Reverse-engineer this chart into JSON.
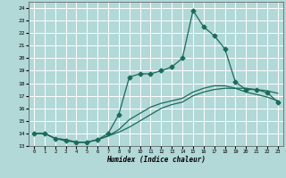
{
  "xlabel": "Humidex (Indice chaleur)",
  "xlim": [
    -0.5,
    23.5
  ],
  "ylim": [
    13,
    24.5
  ],
  "yticks": [
    13,
    14,
    15,
    16,
    17,
    18,
    19,
    20,
    21,
    22,
    23,
    24
  ],
  "xticks": [
    0,
    1,
    2,
    3,
    4,
    5,
    6,
    7,
    8,
    9,
    10,
    11,
    12,
    13,
    14,
    15,
    16,
    17,
    18,
    19,
    20,
    21,
    22,
    23
  ],
  "background_color": "#b2d8d8",
  "grid_color": "#ffffff",
  "line_color": "#1a6b5a",
  "line1_x": [
    0,
    1,
    2,
    3,
    4,
    5,
    6,
    7,
    8,
    9,
    10,
    11,
    12,
    13,
    14,
    15,
    16,
    17,
    18,
    19,
    20,
    21,
    22,
    23
  ],
  "line1_y": [
    14.0,
    14.0,
    13.6,
    13.4,
    13.3,
    13.3,
    13.5,
    14.0,
    15.5,
    18.5,
    18.75,
    18.75,
    19.0,
    19.3,
    20.0,
    23.8,
    22.5,
    21.8,
    20.75,
    18.1,
    17.5,
    17.5,
    17.25,
    16.5
  ],
  "line2_x": [
    0,
    1,
    2,
    3,
    4,
    5,
    6,
    7,
    8,
    9,
    10,
    11,
    12,
    13,
    14,
    15,
    16,
    17,
    18,
    19,
    20,
    21,
    22,
    23
  ],
  "line2_y": [
    14.0,
    14.0,
    13.6,
    13.5,
    13.3,
    13.3,
    13.5,
    13.8,
    14.1,
    14.5,
    15.0,
    15.5,
    16.0,
    16.3,
    16.5,
    17.0,
    17.3,
    17.5,
    17.6,
    17.6,
    17.6,
    17.5,
    17.4,
    17.2
  ],
  "line3_x": [
    0,
    1,
    2,
    3,
    4,
    5,
    6,
    7,
    8,
    9,
    10,
    11,
    12,
    13,
    14,
    15,
    16,
    17,
    18,
    19,
    20,
    21,
    22,
    23
  ],
  "line3_y": [
    14.0,
    14.0,
    13.6,
    13.5,
    13.3,
    13.3,
    13.5,
    13.8,
    14.3,
    15.1,
    15.6,
    16.1,
    16.4,
    16.6,
    16.8,
    17.3,
    17.6,
    17.8,
    17.8,
    17.6,
    17.3,
    17.1,
    16.9,
    16.6
  ]
}
